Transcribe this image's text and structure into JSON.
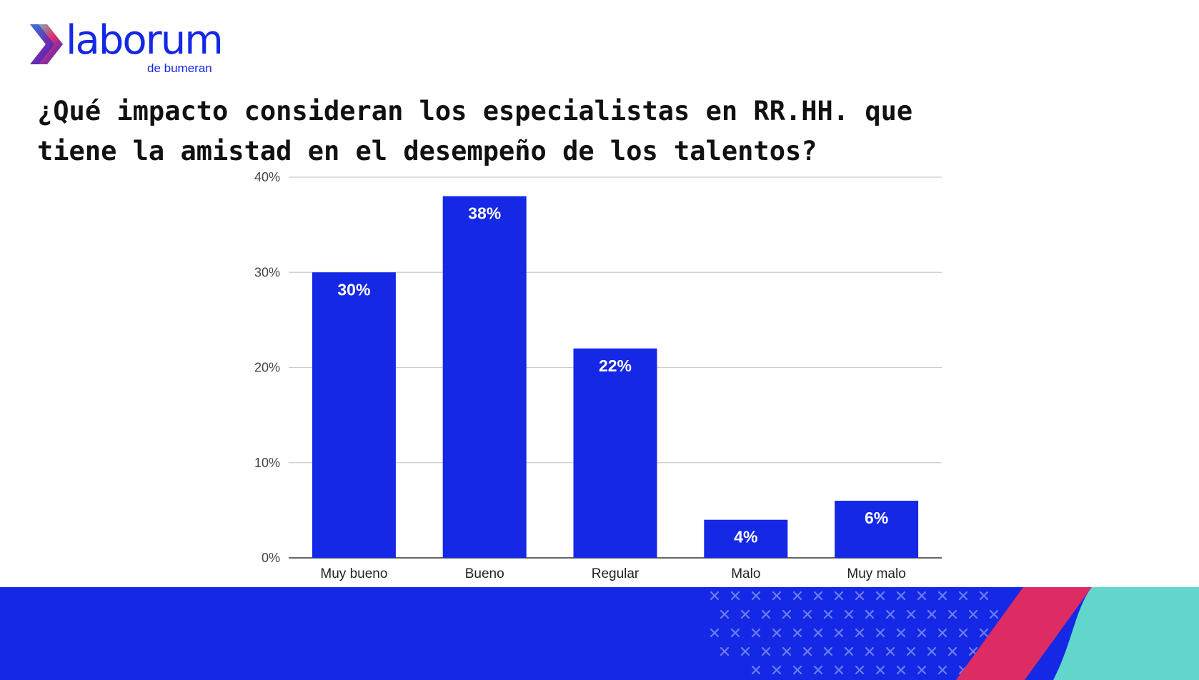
{
  "brand": {
    "name": "laborum",
    "tagline": "de bumeran",
    "colors": {
      "primary": "#1428e6",
      "accent_pink": "#dd2b63",
      "accent_teal": "#62d6cc"
    }
  },
  "chart_data": {
    "type": "bar",
    "title": "¿Qué impacto consideran los especialistas en RR.HH. que tiene la amistad en el desempeño de los talentos?",
    "categories": [
      "Muy bueno",
      "Bueno",
      "Regular",
      "Malo",
      "Muy malo"
    ],
    "values": [
      30,
      38,
      22,
      4,
      6
    ],
    "data_labels": [
      "30%",
      "38%",
      "22%",
      "4%",
      "6%"
    ],
    "y_ticks": [
      0,
      10,
      20,
      30,
      40
    ],
    "y_tick_labels": [
      "0%",
      "10%",
      "20%",
      "30%",
      "40%"
    ],
    "ylim": [
      0,
      40
    ],
    "xlabel": "",
    "ylabel": "",
    "grid": true,
    "legend": "none",
    "bar_color": "#1428e6"
  }
}
